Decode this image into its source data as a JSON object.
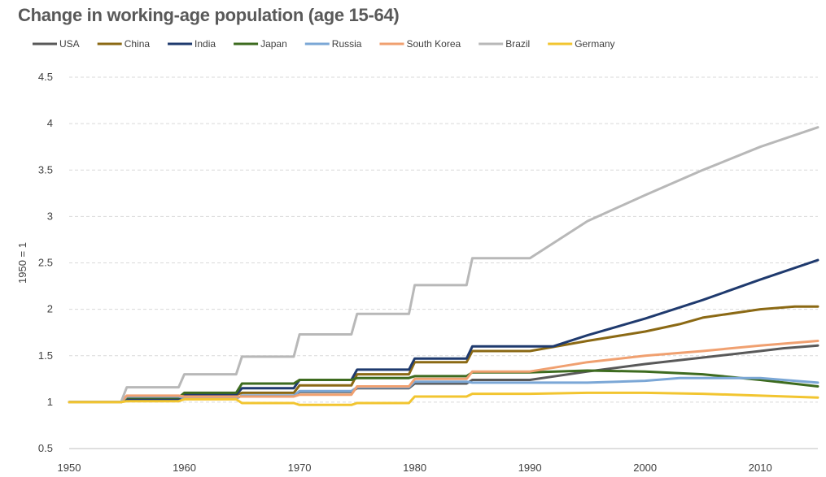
{
  "chart_data": {
    "type": "line",
    "title": "Change in working-age population (age 15-64)",
    "xlabel": "",
    "ylabel": "1950 = 1",
    "xlim": [
      1950,
      2015
    ],
    "ylim": [
      0.5,
      4.5
    ],
    "x_ticks": [
      "1950",
      "1960",
      "1970",
      "1980",
      "1990",
      "2000",
      "2010"
    ],
    "y_ticks": [
      "0.5",
      "1",
      "1.5",
      "2",
      "2.5",
      "3",
      "3.5",
      "4",
      "4.5"
    ],
    "grid": "horizontal-dashed",
    "legend_position": "top",
    "series": [
      {
        "name": "USA",
        "color": "#595959",
        "points": [
          [
            1950,
            1.0
          ],
          [
            1954.5,
            1.0
          ],
          [
            1955,
            1.02
          ],
          [
            1959.5,
            1.02
          ],
          [
            1960,
            1.04
          ],
          [
            1964.5,
            1.04
          ],
          [
            1965,
            1.07
          ],
          [
            1969.5,
            1.07
          ],
          [
            1970,
            1.11
          ],
          [
            1974.5,
            1.11
          ],
          [
            1975,
            1.15
          ],
          [
            1979.5,
            1.15
          ],
          [
            1980,
            1.2
          ],
          [
            1984.5,
            1.2
          ],
          [
            1985,
            1.24
          ],
          [
            1990,
            1.24
          ],
          [
            1995,
            1.33
          ],
          [
            2000,
            1.41
          ],
          [
            2005,
            1.48
          ],
          [
            2010,
            1.55
          ],
          [
            2012,
            1.58
          ],
          [
            2015,
            1.61
          ]
        ]
      },
      {
        "name": "China",
        "color": "#8B6914",
        "points": [
          [
            1950,
            1.0
          ],
          [
            1954.5,
            1.0
          ],
          [
            1955,
            1.05
          ],
          [
            1959.5,
            1.05
          ],
          [
            1960,
            1.08
          ],
          [
            1964.5,
            1.08
          ],
          [
            1965,
            1.1
          ],
          [
            1969.5,
            1.1
          ],
          [
            1970,
            1.18
          ],
          [
            1974.5,
            1.18
          ],
          [
            1975,
            1.3
          ],
          [
            1979.5,
            1.3
          ],
          [
            1980,
            1.43
          ],
          [
            1984.5,
            1.43
          ],
          [
            1985,
            1.55
          ],
          [
            1990,
            1.55
          ],
          [
            1995,
            1.66
          ],
          [
            2000,
            1.76
          ],
          [
            2003,
            1.84
          ],
          [
            2005,
            1.91
          ],
          [
            2010,
            2.0
          ],
          [
            2013,
            2.03
          ],
          [
            2015,
            2.03
          ]
        ]
      },
      {
        "name": "India",
        "color": "#1F3A6E",
        "points": [
          [
            1950,
            1.0
          ],
          [
            1954.5,
            1.0
          ],
          [
            1955,
            1.03
          ],
          [
            1959.5,
            1.03
          ],
          [
            1960,
            1.08
          ],
          [
            1964.5,
            1.08
          ],
          [
            1965,
            1.15
          ],
          [
            1969.5,
            1.15
          ],
          [
            1970,
            1.24
          ],
          [
            1974.5,
            1.24
          ],
          [
            1975,
            1.35
          ],
          [
            1979.5,
            1.35
          ],
          [
            1980,
            1.47
          ],
          [
            1984.5,
            1.47
          ],
          [
            1985,
            1.6
          ],
          [
            1992,
            1.6
          ],
          [
            1995,
            1.72
          ],
          [
            2000,
            1.9
          ],
          [
            2005,
            2.1
          ],
          [
            2010,
            2.32
          ],
          [
            2015,
            2.53
          ]
        ]
      },
      {
        "name": "Japan",
        "color": "#3D6B1F",
        "points": [
          [
            1950,
            1.0
          ],
          [
            1954.5,
            1.0
          ],
          [
            1955,
            1.05
          ],
          [
            1959.5,
            1.05
          ],
          [
            1960,
            1.1
          ],
          [
            1964.5,
            1.1
          ],
          [
            1965,
            1.2
          ],
          [
            1969.5,
            1.2
          ],
          [
            1970,
            1.24
          ],
          [
            1974.5,
            1.24
          ],
          [
            1975,
            1.26
          ],
          [
            1979.5,
            1.26
          ],
          [
            1980,
            1.28
          ],
          [
            1984.5,
            1.28
          ],
          [
            1985,
            1.32
          ],
          [
            1990,
            1.32
          ],
          [
            1995,
            1.34
          ],
          [
            2000,
            1.33
          ],
          [
            2005,
            1.3
          ],
          [
            2010,
            1.24
          ],
          [
            2015,
            1.17
          ]
        ]
      },
      {
        "name": "Russia",
        "color": "#7BA7D6",
        "points": [
          [
            1950,
            1.0
          ],
          [
            1954.5,
            1.0
          ],
          [
            1955,
            1.06
          ],
          [
            1959.5,
            1.06
          ],
          [
            1960,
            1.04
          ],
          [
            1964.5,
            1.04
          ],
          [
            1965,
            1.07
          ],
          [
            1969.5,
            1.07
          ],
          [
            1970,
            1.12
          ],
          [
            1974.5,
            1.12
          ],
          [
            1975,
            1.16
          ],
          [
            1979.5,
            1.16
          ],
          [
            1980,
            1.22
          ],
          [
            1984.5,
            1.22
          ],
          [
            1985,
            1.21
          ],
          [
            1990,
            1.21
          ],
          [
            1995,
            1.21
          ],
          [
            2000,
            1.23
          ],
          [
            2003,
            1.26
          ],
          [
            2005,
            1.26
          ],
          [
            2010,
            1.26
          ],
          [
            2015,
            1.21
          ]
        ]
      },
      {
        "name": "South Korea",
        "color": "#F0A070",
        "points": [
          [
            1950,
            1.0
          ],
          [
            1954.5,
            1.0
          ],
          [
            1955,
            1.07
          ],
          [
            1959.5,
            1.07
          ],
          [
            1960,
            1.06
          ],
          [
            1964.5,
            1.06
          ],
          [
            1965,
            1.06
          ],
          [
            1969.5,
            1.06
          ],
          [
            1970,
            1.08
          ],
          [
            1974.5,
            1.08
          ],
          [
            1975,
            1.17
          ],
          [
            1979.5,
            1.17
          ],
          [
            1980,
            1.25
          ],
          [
            1984.5,
            1.25
          ],
          [
            1985,
            1.33
          ],
          [
            1990,
            1.33
          ],
          [
            1995,
            1.43
          ],
          [
            2000,
            1.5
          ],
          [
            2005,
            1.55
          ],
          [
            2010,
            1.61
          ],
          [
            2015,
            1.66
          ]
        ]
      },
      {
        "name": "Brazil",
        "color": "#B8B8B8",
        "points": [
          [
            1950,
            1.0
          ],
          [
            1954.5,
            1.0
          ],
          [
            1955,
            1.16
          ],
          [
            1959.5,
            1.16
          ],
          [
            1960,
            1.3
          ],
          [
            1964.5,
            1.3
          ],
          [
            1965,
            1.49
          ],
          [
            1969.5,
            1.49
          ],
          [
            1970,
            1.73
          ],
          [
            1974.5,
            1.73
          ],
          [
            1975,
            1.95
          ],
          [
            1979.5,
            1.95
          ],
          [
            1980,
            2.26
          ],
          [
            1984.5,
            2.26
          ],
          [
            1985,
            2.55
          ],
          [
            1990,
            2.55
          ],
          [
            1995,
            2.95
          ],
          [
            2000,
            3.23
          ],
          [
            2005,
            3.5
          ],
          [
            2010,
            3.75
          ],
          [
            2015,
            3.96
          ]
        ]
      },
      {
        "name": "Germany",
        "color": "#F2C530",
        "points": [
          [
            1950,
            1.0
          ],
          [
            1954.5,
            1.0
          ],
          [
            1955,
            1.01
          ],
          [
            1959.5,
            1.01
          ],
          [
            1960,
            1.03
          ],
          [
            1964.5,
            1.03
          ],
          [
            1965,
            0.99
          ],
          [
            1969.5,
            0.99
          ],
          [
            1970,
            0.97
          ],
          [
            1974.5,
            0.97
          ],
          [
            1975,
            0.99
          ],
          [
            1979.5,
            0.99
          ],
          [
            1980,
            1.06
          ],
          [
            1984.5,
            1.06
          ],
          [
            1985,
            1.09
          ],
          [
            1990,
            1.09
          ],
          [
            1995,
            1.1
          ],
          [
            2000,
            1.1
          ],
          [
            2005,
            1.09
          ],
          [
            2010,
            1.07
          ],
          [
            2015,
            1.05
          ]
        ]
      }
    ]
  }
}
